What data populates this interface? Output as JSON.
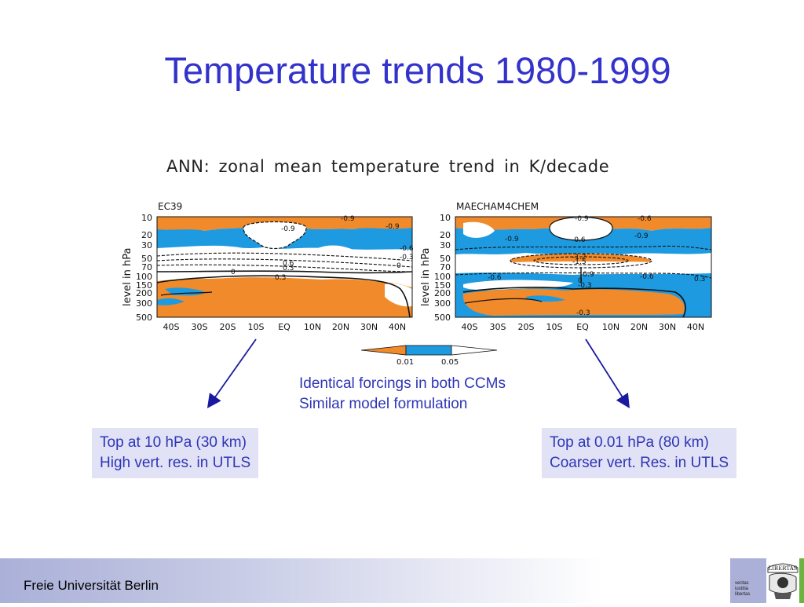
{
  "slide": {
    "title": "Temperature trends 1980-1999",
    "figure_title": "ANN: zonal mean temperature trend in K/decade"
  },
  "panels": [
    {
      "model": "EC39",
      "ylabel": "level in hPa",
      "yticks": [
        "10",
        "20",
        "30",
        "50",
        "70",
        "100",
        "150",
        "200",
        "300",
        "500"
      ],
      "xticks": [
        "40S",
        "30S",
        "20S",
        "10S",
        "EQ",
        "10N",
        "20N",
        "30N",
        "40N"
      ],
      "contour_labels": [
        "-0.9",
        "-0.9",
        "-0.9",
        "-0.6",
        "-0.3",
        "0.6",
        "0.3",
        "0",
        "0",
        "0.3"
      ]
    },
    {
      "model": "MAECHAM4CHEM",
      "ylabel": "level in hPa",
      "yticks": [
        "10",
        "20",
        "30",
        "50",
        "70",
        "100",
        "150",
        "200",
        "300",
        "500"
      ],
      "xticks": [
        "40S",
        "30S",
        "20S",
        "10S",
        "EQ",
        "10N",
        "20N",
        "30N",
        "40N"
      ],
      "contour_labels": [
        "-0.9",
        "-0.6",
        "-0.9",
        "-0.6",
        "-0.9",
        "-1.2",
        "-1.5",
        "-0.9",
        "0",
        "-0.6",
        "-0.6",
        "-0.3",
        "-0.3",
        "0.3"
      ]
    }
  ],
  "colorbar": {
    "labels": [
      "0.01",
      "0.05"
    ],
    "colors": [
      "#f08a2a",
      "#1e9ae0",
      "#ffffff"
    ]
  },
  "notes": [
    "Identical forcings in both CCMs",
    "Similar model formulation"
  ],
  "left_box": [
    "Top at 10 hPa (30 km)",
    "High vert. res. in UTLS"
  ],
  "right_box": [
    "Top at 0.01 hPa (80 km)",
    "Coarser vert. Res. in UTLS"
  ],
  "footer": {
    "university": "Freie Universität Berlin"
  },
  "seal": {
    "motto": [
      "veritas",
      "iustitia",
      "libertas"
    ],
    "emblem_text": "LIBERTAS"
  },
  "colors": {
    "title": "#3333cc",
    "text": "#2d35b5",
    "box_bg": "#e2e2f6",
    "orange": "#f08a2a",
    "blue": "#1e9ae0"
  }
}
